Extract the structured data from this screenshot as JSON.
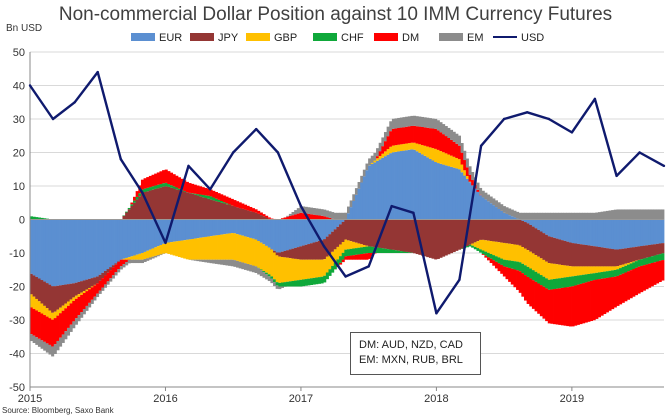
{
  "chart_data": {
    "type": "area",
    "stacked": true,
    "title": "Non-commercial Dollar Position against 10 IMM Currency Futures",
    "ylabel": "Bn USD",
    "source": "Source: Bloomberg, Saxo Bank",
    "ylim": [
      -50,
      50
    ],
    "yticks": [
      50,
      40,
      30,
      20,
      10,
      0,
      -10,
      -20,
      -30,
      -40,
      -50
    ],
    "xlim": [
      2015.0,
      2019.68
    ],
    "xticks": [
      2015,
      2016,
      2017,
      2018,
      2019
    ],
    "legend_position": "top",
    "note_lines": [
      "DM: AUD, NZD, CAD",
      "EM: MXN, RUB, BRL"
    ],
    "series_names": [
      "EUR",
      "JPY",
      "GBP",
      "CHF",
      "DM",
      "EM",
      "USD"
    ],
    "colors": {
      "EUR": "#5b8fd1",
      "JPY": "#943634",
      "GBP": "#ffc000",
      "CHF": "#0fa83a",
      "DM": "#ff0000",
      "EM": "#8c8c8c",
      "USD": "#0f1a6e"
    },
    "x": [
      2015.0,
      2015.17,
      2015.33,
      2015.5,
      2015.67,
      2015.83,
      2016.0,
      2016.17,
      2016.33,
      2016.5,
      2016.67,
      2016.83,
      2017.0,
      2017.17,
      2017.33,
      2017.5,
      2017.67,
      2017.83,
      2018.0,
      2018.17,
      2018.33,
      2018.5,
      2018.67,
      2018.83,
      2019.0,
      2019.17,
      2019.33,
      2019.5,
      2019.68
    ],
    "series": [
      {
        "name": "EUR",
        "values": [
          -16,
          -20,
          -19,
          -17,
          -12,
          -10,
          -7,
          -6,
          -5,
          -4,
          -6,
          -10,
          -8,
          -6,
          0,
          16,
          20,
          21,
          17,
          15,
          7,
          2,
          -1,
          -5,
          -7,
          -8,
          -9,
          -8,
          -7
        ]
      },
      {
        "name": "JPY",
        "values": [
          -6,
          -8,
          -4,
          -2,
          0,
          8,
          10,
          8,
          6,
          4,
          2,
          -1,
          -4,
          -6,
          -6,
          -8,
          -9,
          -10,
          -12,
          -9,
          -6,
          -7,
          -8,
          -8,
          -7,
          -6,
          -5,
          -4,
          -3
        ]
      },
      {
        "name": "GBP",
        "values": [
          -4,
          -2,
          -1,
          0,
          0,
          -2,
          -3,
          -6,
          -7,
          -8,
          -8,
          -8,
          -6,
          -5,
          -3,
          0,
          2,
          2,
          4,
          3,
          -3,
          -5,
          -5,
          -5,
          -3,
          -2,
          -1,
          0,
          0
        ]
      },
      {
        "name": "CHF",
        "values": [
          1,
          0,
          0,
          0,
          0,
          1,
          1,
          0,
          1,
          0,
          0,
          -1,
          -2,
          -2,
          -2,
          -2,
          -1,
          0,
          0,
          0,
          -1,
          -2,
          -3,
          -3,
          -3,
          -2,
          -2,
          -2,
          -2
        ]
      },
      {
        "name": "DM",
        "values": [
          -8,
          -8,
          -6,
          -3,
          -2,
          3,
          4,
          3,
          2,
          2,
          1,
          0,
          2,
          1,
          -1,
          -2,
          5,
          5,
          6,
          4,
          0,
          -3,
          -8,
          -10,
          -12,
          -12,
          -9,
          -8,
          -6
        ]
      },
      {
        "name": "EM",
        "values": [
          -2,
          -3,
          -2,
          -1,
          -1,
          -1,
          0,
          0,
          -1,
          -2,
          -2,
          -1,
          2,
          2,
          2,
          2,
          3,
          3,
          3,
          3,
          2,
          2,
          2,
          2,
          2,
          2,
          3,
          3,
          3
        ]
      },
      {
        "name": "USD",
        "values": [
          40,
          30,
          35,
          44,
          18,
          8,
          -7,
          16,
          9,
          20,
          27,
          20,
          4,
          -8,
          -17,
          -14,
          4,
          2,
          -28,
          -18,
          22,
          30,
          32,
          30,
          26,
          36,
          13,
          20,
          16
        ]
      }
    ]
  }
}
